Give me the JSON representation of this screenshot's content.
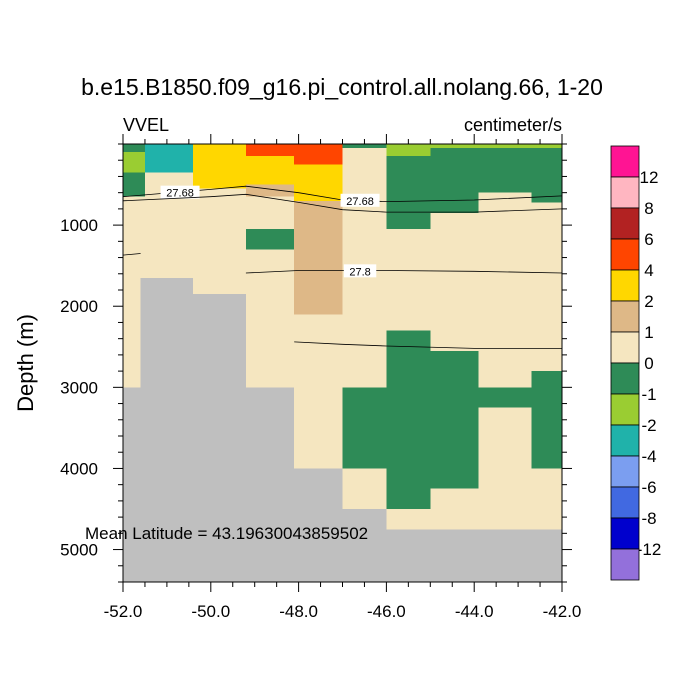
{
  "chart_data": {
    "type": "heatmap",
    "title": "b.e15.B1850.f09_g16.pi_control.all.nolang.66, 1-20",
    "left_subtitle": "VVEL",
    "right_subtitle": "centimeter/s",
    "xlabel": "",
    "ylabel": "Depth (m)",
    "xlim": [
      -52.0,
      -42.0
    ],
    "ylim": [
      5400,
      0
    ],
    "x_ticks": [
      -52.0,
      -50.0,
      -48.0,
      -46.0,
      -44.0,
      -42.0
    ],
    "x_tick_labels": [
      "-52.0",
      "-50.0",
      "-48.0",
      "-46.0",
      "-44.0",
      "-42.0"
    ],
    "y_ticks": [
      1000,
      2000,
      3000,
      4000,
      5000
    ],
    "y_tick_labels": [
      "1000",
      "2000",
      "3000",
      "4000",
      "5000"
    ],
    "annotation": "Mean Latitude = 43.19630043859502",
    "colorbar": {
      "labels": [
        "12",
        "8",
        "6",
        "4",
        "2",
        "1",
        "0",
        "-1",
        "-2",
        "-4",
        "-6",
        "-8",
        "-12"
      ],
      "colors": [
        "#ff1493",
        "#ffb6c1",
        "#b22222",
        "#ff4500",
        "#ffd700",
        "#deb887",
        "#f5e6c0",
        "#2e8b57",
        "#9acd32",
        "#20b2aa",
        "#7b9ef0",
        "#4169e1",
        "#0000cd",
        "#9370db"
      ]
    },
    "levels": {
      "n12": "#ff1493",
      "n8": "#ffb6c1",
      "n6": "#b22222",
      "n4": "#ff4500",
      "n2": "#ffd700",
      "n1": "#deb887",
      "n0": "#f5e6c0",
      "m1": "#2e8b57",
      "m2": "#9acd32",
      "m4": "#20b2aa",
      "m6": "#7b9ef0",
      "m8": "#4169e1",
      "m12": "#0000cd",
      "land": "#bfbfbf"
    },
    "cells": [
      {
        "x": [
          -52.0,
          -51.5
        ],
        "y": [
          0,
          100
        ],
        "c": "m1"
      },
      {
        "x": [
          -52.0,
          -51.5
        ],
        "y": [
          100,
          350
        ],
        "c": "m2"
      },
      {
        "x": [
          -52.0,
          -51.5
        ],
        "y": [
          350,
          650
        ],
        "c": "m1"
      },
      {
        "x": [
          -51.5,
          -50.4
        ],
        "y": [
          0,
          350
        ],
        "c": "m4"
      },
      {
        "x": [
          -50.4,
          -49.2
        ],
        "y": [
          0,
          550
        ],
        "c": "n2"
      },
      {
        "x": [
          -49.2,
          -48.1
        ],
        "y": [
          0,
          150
        ],
        "c": "n4"
      },
      {
        "x": [
          -49.2,
          -48.1
        ],
        "y": [
          150,
          500
        ],
        "c": "n2"
      },
      {
        "x": [
          -49.2,
          -48.1
        ],
        "y": [
          500,
          650
        ],
        "c": "n1"
      },
      {
        "x": [
          -48.1,
          -47.0
        ],
        "y": [
          0,
          250
        ],
        "c": "n4"
      },
      {
        "x": [
          -48.1,
          -47.0
        ],
        "y": [
          250,
          700
        ],
        "c": "n2"
      },
      {
        "x": [
          -48.1,
          -47.0
        ],
        "y": [
          700,
          2100
        ],
        "c": "n1"
      },
      {
        "x": [
          -49.2,
          -48.1
        ],
        "y": [
          1050,
          1300
        ],
        "c": "m1"
      },
      {
        "x": [
          -47.0,
          -46.0
        ],
        "y": [
          0,
          50
        ],
        "c": "m1"
      },
      {
        "x": [
          -46.0,
          -45.0
        ],
        "y": [
          0,
          150
        ],
        "c": "m2"
      },
      {
        "x": [
          -46.0,
          -45.0
        ],
        "y": [
          150,
          1050
        ],
        "c": "m1"
      },
      {
        "x": [
          -45.0,
          -42.0
        ],
        "y": [
          0,
          50
        ],
        "c": "m2"
      },
      {
        "x": [
          -45.0,
          -42.0
        ],
        "y": [
          50,
          600
        ],
        "c": "m1"
      },
      {
        "x": [
          -45.0,
          -43.9
        ],
        "y": [
          600,
          850
        ],
        "c": "m1"
      },
      {
        "x": [
          -42.7,
          -42.0
        ],
        "y": [
          600,
          720
        ],
        "c": "m1"
      },
      {
        "x": [
          -46.0,
          -45.0
        ],
        "y": [
          2300,
          3000
        ],
        "c": "m1"
      },
      {
        "x": [
          -45.0,
          -43.9
        ],
        "y": [
          2550,
          3000
        ],
        "c": "m1"
      },
      {
        "x": [
          -42.7,
          -42.0
        ],
        "y": [
          2800,
          3000
        ],
        "c": "m1"
      },
      {
        "x": [
          -47.0,
          -42.0
        ],
        "y": [
          3000,
          3250
        ],
        "c": "m1"
      },
      {
        "x": [
          -47.0,
          -43.9
        ],
        "y": [
          3250,
          3550
        ],
        "c": "m1"
      },
      {
        "x": [
          -42.7,
          -42.0
        ],
        "y": [
          3250,
          4000
        ],
        "c": "m1"
      },
      {
        "x": [
          -47.0,
          -46.0
        ],
        "y": [
          3550,
          4000
        ],
        "c": "m1"
      },
      {
        "x": [
          -46.0,
          -45.0
        ],
        "y": [
          3550,
          4500
        ],
        "c": "m1"
      },
      {
        "x": [
          -45.0,
          -43.9
        ],
        "y": [
          3550,
          4250
        ],
        "c": "m1"
      },
      {
        "x": [
          -52.0,
          -51.6
        ],
        "y": [
          3000,
          5400
        ],
        "c": "land"
      },
      {
        "x": [
          -51.6,
          -50.4
        ],
        "y": [
          1650,
          5400
        ],
        "c": "land"
      },
      {
        "x": [
          -50.4,
          -49.2
        ],
        "y": [
          1850,
          5400
        ],
        "c": "land"
      },
      {
        "x": [
          -49.2,
          -48.1
        ],
        "y": [
          3000,
          5400
        ],
        "c": "land"
      },
      {
        "x": [
          -48.1,
          -47.0
        ],
        "y": [
          4000,
          5400
        ],
        "c": "land"
      },
      {
        "x": [
          -47.0,
          -46.0
        ],
        "y": [
          4500,
          5400
        ],
        "c": "land"
      },
      {
        "x": [
          -46.0,
          -42.0
        ],
        "y": [
          4750,
          5400
        ],
        "c": "land"
      }
    ],
    "contours": [
      {
        "label": "27.68",
        "points": [
          [
            -52.0,
            650
          ],
          [
            -50.0,
            560
          ],
          [
            -49.2,
            520
          ],
          [
            -48.0,
            600
          ],
          [
            -47.0,
            690
          ],
          [
            -46.0,
            710
          ],
          [
            -44.0,
            690
          ],
          [
            -42.0,
            640
          ]
        ],
        "label_at": [
          -50.7,
          600
        ]
      },
      {
        "label": "27.68",
        "points": [
          [
            -52.0,
            700
          ],
          [
            -50.0,
            650
          ],
          [
            -49.2,
            620
          ],
          [
            -48.0,
            720
          ],
          [
            -47.0,
            810
          ],
          [
            -46.0,
            840
          ],
          [
            -44.0,
            840
          ],
          [
            -42.0,
            800
          ]
        ],
        "label_at": [
          -46.6,
          700
        ]
      },
      {
        "label": "",
        "points": [
          [
            -52.0,
            1370
          ],
          [
            -51.6,
            1350
          ]
        ],
        "label_at": null
      },
      {
        "label": "27.8",
        "points": [
          [
            -49.2,
            1590
          ],
          [
            -48.0,
            1560
          ],
          [
            -46.0,
            1560
          ],
          [
            -44.0,
            1570
          ],
          [
            -42.0,
            1590
          ]
        ],
        "label_at": [
          -46.6,
          1570
        ]
      },
      {
        "label": "",
        "points": [
          [
            -48.1,
            2440
          ],
          [
            -47.0,
            2470
          ],
          [
            -46.0,
            2490
          ],
          [
            -44.0,
            2520
          ],
          [
            -42.0,
            2520
          ]
        ],
        "label_at": null
      }
    ]
  }
}
